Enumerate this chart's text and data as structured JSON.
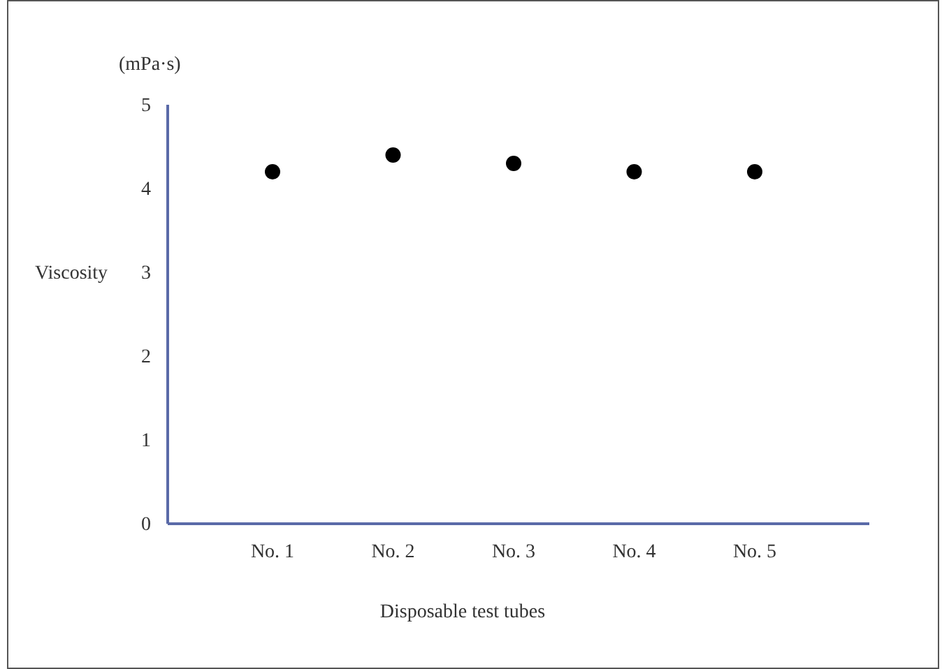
{
  "chart_data": {
    "type": "scatter",
    "ylabel": "Viscosity",
    "subtitle": "(mPa·s)",
    "xlabel": "Disposable test tubes",
    "categories": [
      "No. 1",
      "No. 2",
      "No. 3",
      "No. 4",
      "No. 5"
    ],
    "series": [
      {
        "color": "#000000",
        "values": [
          4.2,
          4.4,
          4.3,
          4.2,
          4.2
        ]
      }
    ],
    "ylim": [
      0,
      5
    ],
    "yticks": [
      0,
      1,
      2,
      3,
      4,
      5
    ],
    "grid": false,
    "marker": "circle"
  }
}
